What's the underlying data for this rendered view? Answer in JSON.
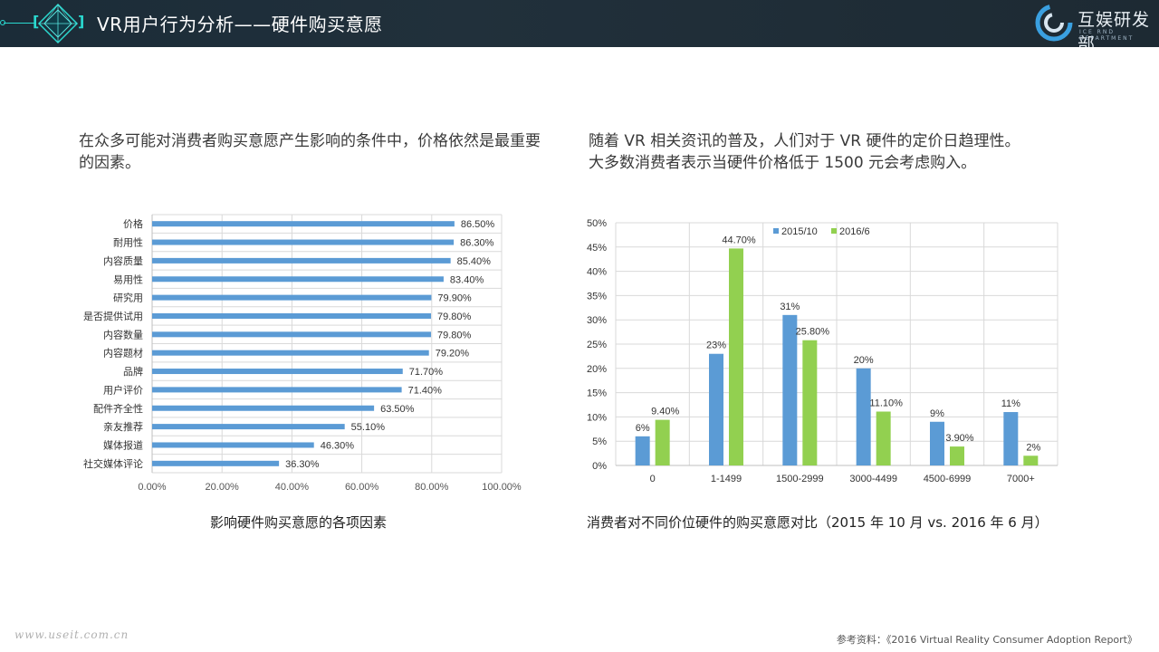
{
  "header": {
    "title": "VR用户行为分析——硬件购买意愿",
    "bracket_left": "[",
    "bracket_right": "]",
    "logo_text": "互娱研发部",
    "logo_sub": "ICE RND DEPARTMENT",
    "accent_color": "#2ad9d0"
  },
  "left": {
    "description": "在众多可能对消费者购买意愿产生影响的条件中，价格依然是最重要的因素。",
    "caption": "影响硬件购买意愿的各项因素"
  },
  "right": {
    "description_line1": "随着 VR 相关资讯的普及，人们对于 VR 硬件的定价日趋理性。",
    "description_line2": "大多数消费者表示当硬件价格低于 1500 元会考虑购入。",
    "caption": "消费者对不同价位硬件的购买意愿对比（2015 年 10 月 vs. 2016 年 6 月）"
  },
  "footer": {
    "website": "www.useit.com.cn",
    "source": "参考资料：《2016 Virtual Reality Consumer Adoption Report》"
  },
  "chart_data": [
    {
      "type": "bar",
      "orientation": "horizontal",
      "categories": [
        "价格",
        "耐用性",
        "内容质量",
        "易用性",
        "研究用",
        "是否提供试用",
        "内容数量",
        "内容题材",
        "品牌",
        "用户评价",
        "配件齐全性",
        "亲友推荐",
        "媒体报道",
        "社交媒体评论"
      ],
      "values": [
        86.5,
        86.3,
        85.4,
        83.4,
        79.9,
        79.8,
        79.8,
        79.2,
        71.7,
        71.4,
        63.5,
        55.1,
        46.3,
        36.3
      ],
      "labels": [
        "86.50%",
        "86.30%",
        "85.40%",
        "83.40%",
        "79.90%",
        "79.80%",
        "79.80%",
        "79.20%",
        "71.70%",
        "71.40%",
        "63.50%",
        "55.10%",
        "46.30%",
        "36.30%"
      ],
      "xticks": [
        "0.00%",
        "20.00%",
        "40.00%",
        "60.00%",
        "80.00%",
        "100.00%"
      ],
      "xlim": [
        0,
        100
      ],
      "color": "#5b9bd5",
      "grid": true
    },
    {
      "type": "bar",
      "categories": [
        "0",
        "1-1499",
        "1500-2999",
        "3000-4499",
        "4500-6999",
        "7000+"
      ],
      "series": [
        {
          "name": "2015/10",
          "values": [
            6,
            23,
            31,
            20,
            9,
            11
          ],
          "labels": [
            "6%",
            "23%",
            "31%",
            "20%",
            "9%",
            "11%"
          ],
          "color": "#5b9bd5"
        },
        {
          "name": "2016/6",
          "values": [
            9.4,
            44.7,
            25.8,
            11.1,
            3.9,
            2
          ],
          "labels": [
            "9.40%",
            "44.70%",
            "25.80%",
            "11.10%",
            "3.90%",
            "2%"
          ],
          "color": "#92d050"
        }
      ],
      "yticks": [
        "0%",
        "5%",
        "10%",
        "15%",
        "20%",
        "25%",
        "30%",
        "35%",
        "40%",
        "45%",
        "50%"
      ],
      "ylim": [
        0,
        50
      ],
      "legend": "top",
      "grid": true
    }
  ]
}
